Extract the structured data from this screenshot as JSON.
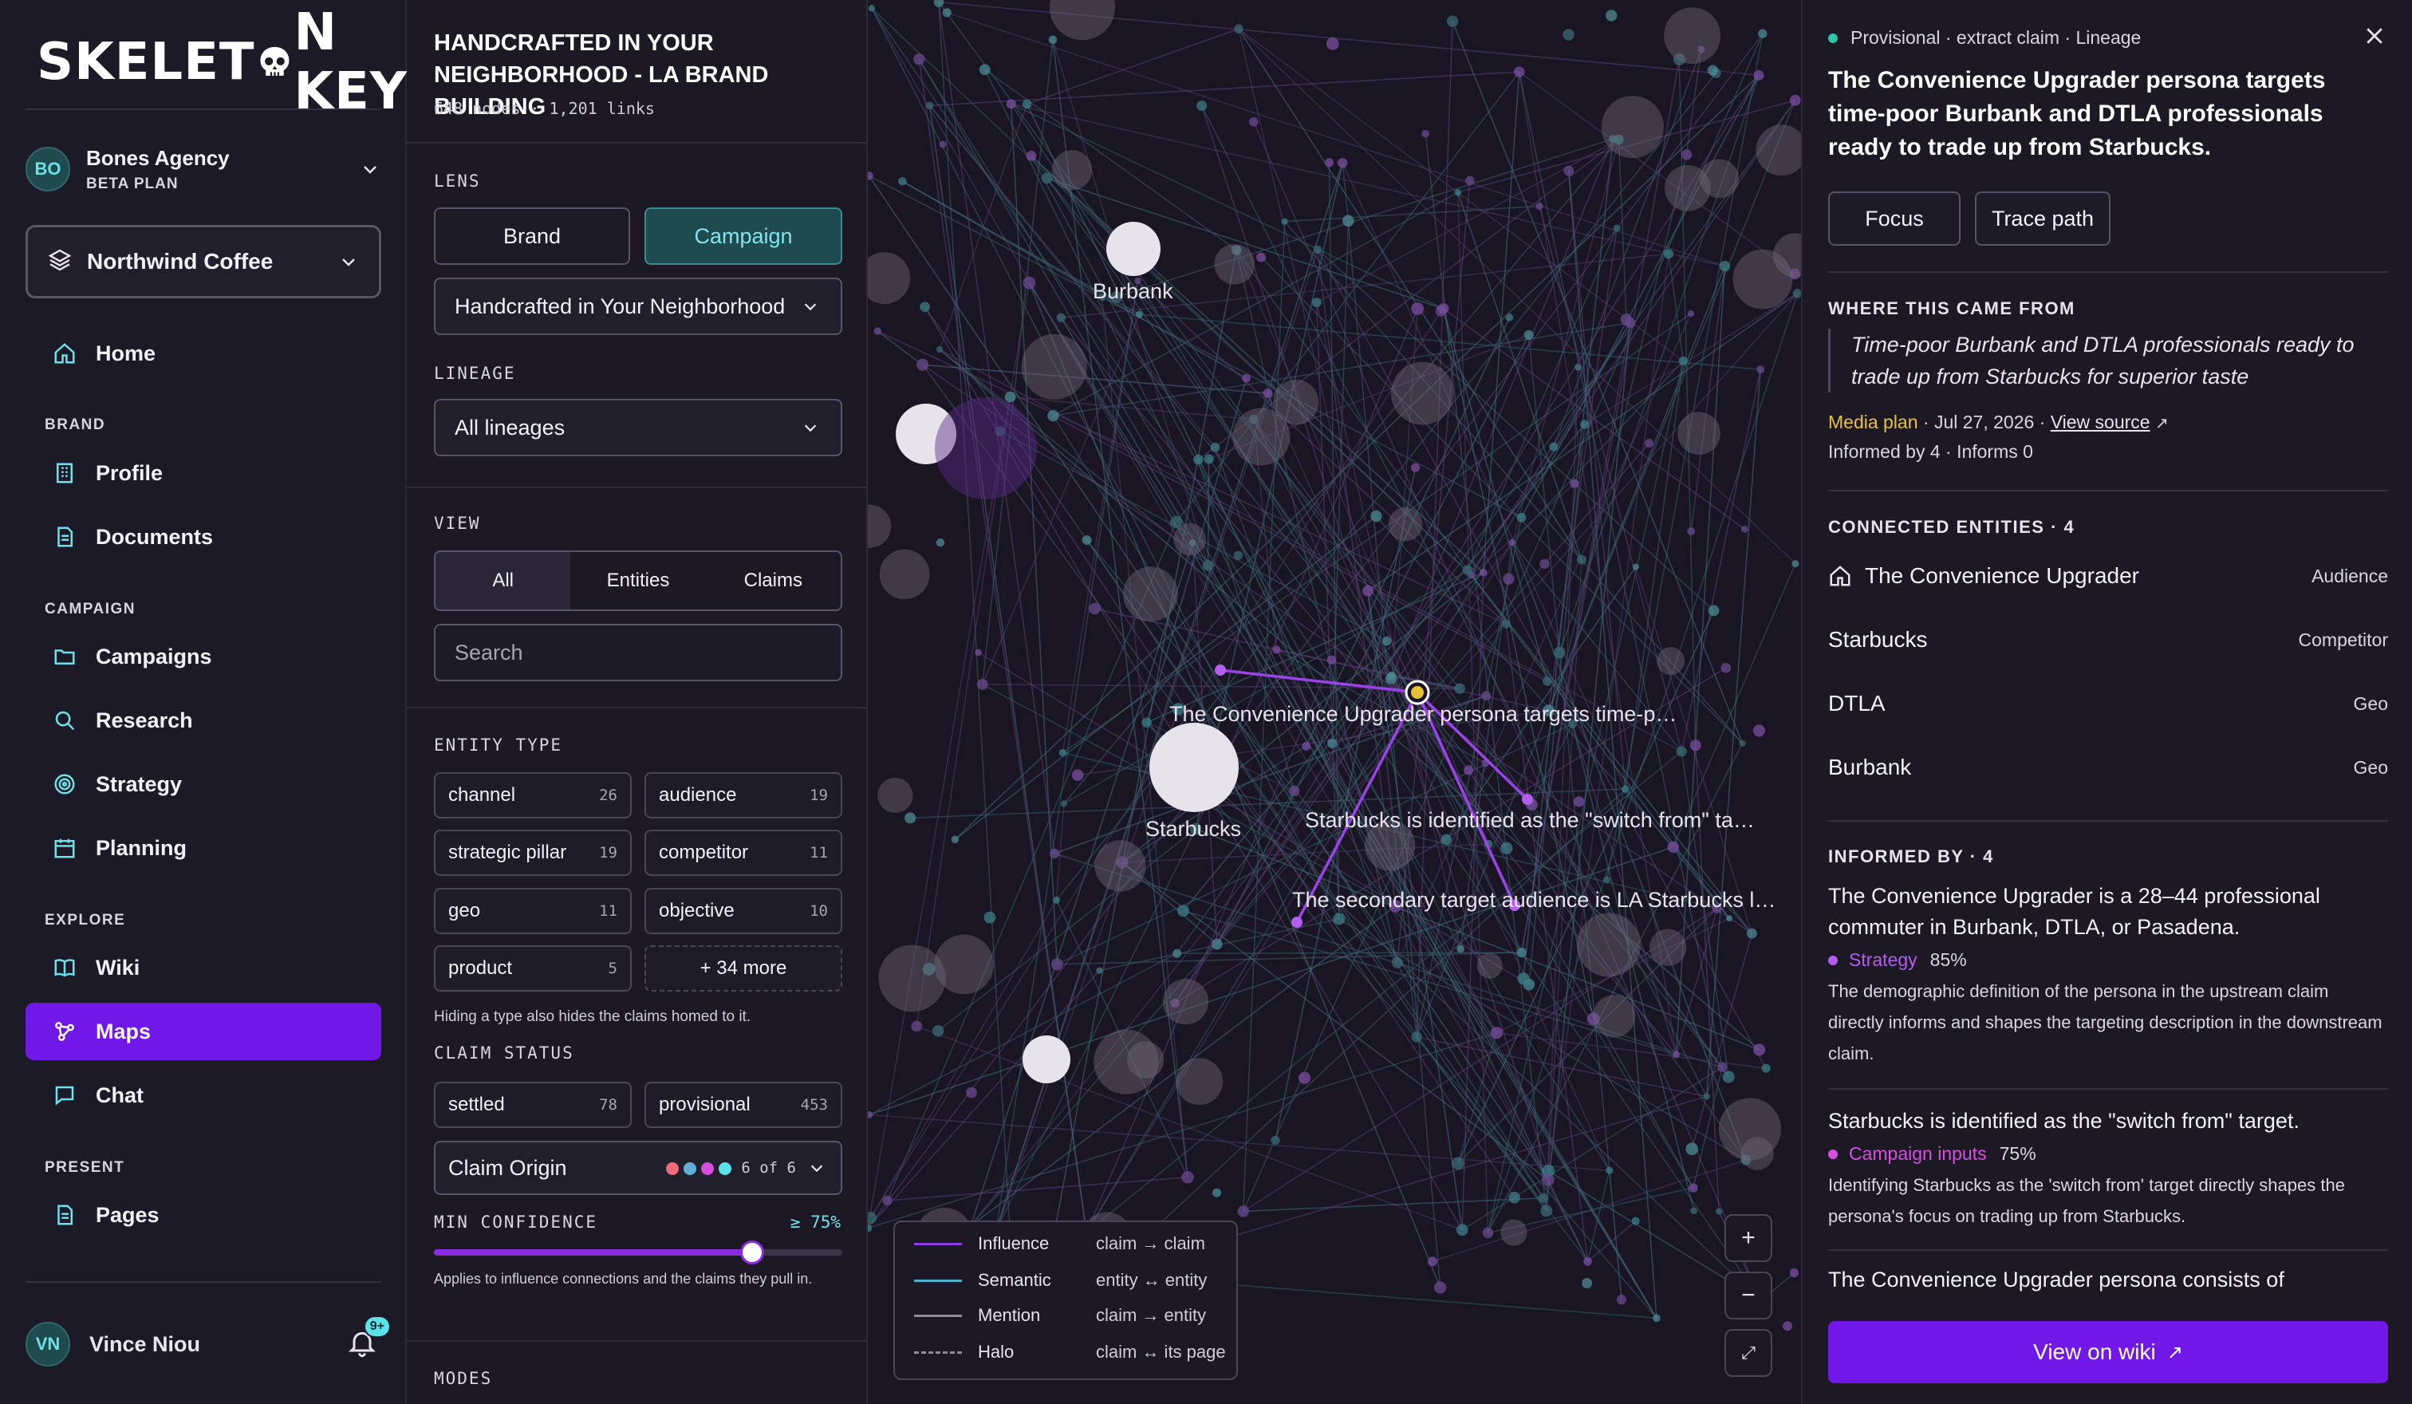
{
  "app": {
    "logo_text_1": "SKELET",
    "logo_text_2": "N KEY"
  },
  "agency": {
    "initials": "BO",
    "name": "Bones Agency",
    "plan": "BETA PLAN"
  },
  "brand_select": {
    "label": "Northwind Coffee"
  },
  "nav": {
    "home": "Home",
    "sections": {
      "brand": "BRAND",
      "campaign": "CAMPAIGN",
      "explore": "EXPLORE",
      "present": "PRESENT"
    },
    "items": {
      "profile": "Profile",
      "documents": "Documents",
      "campaigns": "Campaigns",
      "research": "Research",
      "strategy": "Strategy",
      "planning": "Planning",
      "wiki": "Wiki",
      "maps": "Maps",
      "chat": "Chat",
      "pages": "Pages"
    }
  },
  "user": {
    "initials": "VN",
    "name": "Vince Niou",
    "notifications": "9+"
  },
  "panel": {
    "title": "HANDCRAFTED IN YOUR NEIGHBORHOOD - LA BRAND BUILDING",
    "stats": "648 nodes · 1,201 links",
    "lens_label": "LENS",
    "lens_brand": "Brand",
    "lens_campaign": "Campaign",
    "campaign_select": "Handcrafted in Your Neighborhood",
    "lineage_label": "LINEAGE",
    "lineage_select": "All lineages",
    "view_label": "VIEW",
    "view_all": "All",
    "view_entities": "Entities",
    "view_claims": "Claims",
    "search_placeholder": "Search",
    "entity_type_label": "ENTITY TYPE",
    "entity_types": [
      {
        "name": "channel",
        "count": "26"
      },
      {
        "name": "audience",
        "count": "19"
      },
      {
        "name": "strategic pillar",
        "count": "19"
      },
      {
        "name": "competitor",
        "count": "11"
      },
      {
        "name": "geo",
        "count": "11"
      },
      {
        "name": "objective",
        "count": "10"
      },
      {
        "name": "product",
        "count": "5"
      }
    ],
    "more_types": "+ 34 more",
    "entity_hint": "Hiding a type also hides the claims homed to it.",
    "claim_status_label": "CLAIM STATUS",
    "claim_statuses": [
      {
        "name": "settled",
        "count": "78"
      },
      {
        "name": "provisional",
        "count": "453"
      }
    ],
    "claim_origin": "Claim Origin",
    "claim_origin_count": "6 of 6",
    "origin_colors": [
      "#f06a7e",
      "#5fb0d6",
      "#d64fe0",
      "#5ce3ea"
    ],
    "min_conf_label": "MIN CONFIDENCE",
    "min_conf_value": "≥ 75%",
    "min_conf_level": 0.78,
    "min_conf_hint": "Applies to influence connections and the claims they pull in.",
    "modes_label": "MODES"
  },
  "graph": {
    "labels": {
      "burbank": "Burbank",
      "starbucks": "Starbucks",
      "claim_main": "The Convenience Upgrader persona targets time-p…",
      "claim_switch": "Starbucks is identified as the \"switch from\" ta…",
      "claim_secondary": "The secondary target audience is LA Starbucks l…"
    },
    "legend": [
      {
        "name": "Influence",
        "desc": "claim → claim",
        "color": "#8a3be8",
        "style": "solid"
      },
      {
        "name": "Semantic",
        "desc": "entity ↔ entity",
        "color": "#4fb3cf",
        "style": "solid"
      },
      {
        "name": "Mention",
        "desc": "claim → entity",
        "color": "#8e8a99",
        "style": "solid"
      },
      {
        "name": "Halo",
        "desc": "claim ↔ its page",
        "color": "#8e8a99",
        "style": "dashed"
      }
    ],
    "zoom_in": "+",
    "zoom_out": "−",
    "fit": "⤢"
  },
  "detail": {
    "crumb": "Provisional · extract claim · Lineage",
    "title": "The Convenience Upgrader persona targets time-poor Burbank and DTLA professionals ready to trade up from Starbucks.",
    "focus": "Focus",
    "trace": "Trace path",
    "where_head": "WHERE THIS CAME FROM",
    "quote": "Time-poor Burbank and DTLA professionals ready to trade up from Starbucks for superior taste",
    "source_type": "Media plan",
    "source_date": " · Jul 27, 2026 · ",
    "view_source": "View source",
    "informs_line": "Informed by 4 · Informs 0",
    "connected_head": "CONNECTED ENTITIES · 4",
    "entities": [
      {
        "name": "The Convenience Upgrader",
        "type": "Audience"
      },
      {
        "name": "Starbucks",
        "type": "Competitor"
      },
      {
        "name": "DTLA",
        "type": "Geo"
      },
      {
        "name": "Burbank",
        "type": "Geo"
      }
    ],
    "informed_head": "INFORMED BY · 4",
    "informed": [
      {
        "text": "The Convenience Upgrader is a 28–44 professional commuter in Burbank, DTLA, or Pasadena.",
        "source": "Strategy",
        "conf": "85%",
        "color": "#b45ef0",
        "desc": "The demographic definition of the persona in the upstream claim directly informs and shapes the targeting description in the downstream claim."
      },
      {
        "text": "Starbucks is identified as the \"switch from\" target.",
        "source": "Campaign inputs",
        "conf": "75%",
        "color": "#d64fe0",
        "desc": "Identifying Starbucks as the 'switch from' target directly shapes the persona's focus on trading up from Starbucks."
      },
      {
        "text": "The Convenience Upgrader persona consists of",
        "source": "",
        "conf": "",
        "color": "",
        "desc": ""
      }
    ],
    "wiki_button": "View on wiki"
  }
}
